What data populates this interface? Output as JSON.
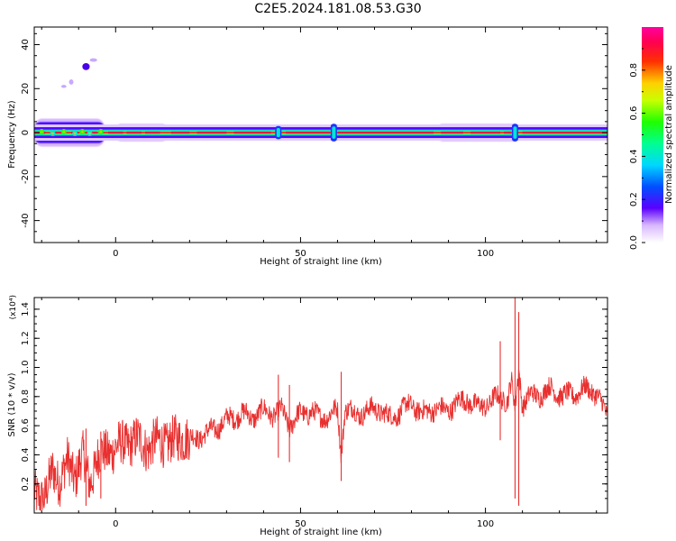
{
  "chart_data": [
    {
      "type": "heatmap",
      "title": "C2E5.2024.181.08.53.G30",
      "xlabel": "Height of straight line (km)",
      "ylabel": "Frequency (Hz)",
      "xlim": [
        -22,
        133
      ],
      "ylim": [
        -50,
        48
      ],
      "x_ticks": [
        0,
        50,
        100
      ],
      "y_ticks": [
        -40,
        -20,
        0,
        20,
        40
      ],
      "colorbar": {
        "label": "Normalized spectral amplitude",
        "range": [
          0,
          1
        ],
        "ticks": [
          "0.0",
          "0.2",
          "0.4",
          "0.6",
          "0.8"
        ],
        "tick_values": [
          0.0,
          0.2,
          0.4,
          0.6,
          0.8
        ]
      },
      "ridge": {
        "frequency": 0,
        "x_start": -22,
        "x_end": 133,
        "wide_segments": [
          {
            "x": [
              -22,
              -3
            ],
            "half_width": 4,
            "amplitude": 0.5
          },
          {
            "x": [
              0,
              14
            ],
            "half_width": 2.5,
            "amplitude": 0.45
          },
          {
            "x": [
              87,
              109
            ],
            "half_width": 2.5,
            "amplitude": 0.45
          }
        ],
        "spikes": [
          {
            "x": 44,
            "half_width": 3
          },
          {
            "x": 59,
            "half_width": 4
          },
          {
            "x": 108,
            "half_width": 4
          }
        ]
      },
      "blobs": [
        {
          "x": -8,
          "f": 30,
          "rx": 1,
          "ry": 1.6,
          "amplitude": 0.05
        },
        {
          "x": -6,
          "f": 33,
          "rx": 1,
          "ry": 0.8,
          "amplitude": 0.02
        },
        {
          "x": -12,
          "f": 23,
          "rx": 0.6,
          "ry": 1.2,
          "amplitude": 0.02
        },
        {
          "x": -14,
          "f": 21,
          "rx": 0.7,
          "ry": 0.7,
          "amplitude": 0.01
        }
      ]
    },
    {
      "type": "line",
      "xlabel": "Height of straight line (km)",
      "ylabel": "SNR (10 * v/v)",
      "y_exponent": "(x10⁴)",
      "xlim": [
        -22,
        133
      ],
      "ylim": [
        0,
        1.48
      ],
      "x_ticks": [
        0,
        50,
        100
      ],
      "y_ticks": [
        0.2,
        0.4,
        0.6,
        0.8,
        1.0,
        1.2,
        1.4
      ],
      "series": [
        {
          "color": "#e8302f",
          "x": [
            -22,
            -19,
            -17,
            -15,
            -13,
            -11,
            -9,
            -7,
            -5,
            -2,
            0,
            3,
            6,
            9,
            12,
            15,
            18,
            20,
            22,
            25,
            28,
            31,
            34,
            37,
            40,
            43,
            45,
            47,
            50,
            53,
            55,
            58,
            60,
            61,
            62,
            65,
            68,
            71,
            74,
            77,
            80,
            83,
            86,
            89,
            92,
            95,
            98,
            101,
            104,
            106,
            107,
            108,
            109,
            110,
            112,
            115,
            118,
            121,
            124,
            127,
            130,
            133
          ],
          "y": [
            0.15,
            0.1,
            0.3,
            0.22,
            0.35,
            0.25,
            0.4,
            0.2,
            0.38,
            0.42,
            0.45,
            0.48,
            0.5,
            0.45,
            0.5,
            0.48,
            0.53,
            0.5,
            0.52,
            0.55,
            0.6,
            0.65,
            0.68,
            0.66,
            0.7,
            0.68,
            0.7,
            0.6,
            0.68,
            0.7,
            0.65,
            0.68,
            0.7,
            0.4,
            0.72,
            0.68,
            0.7,
            0.72,
            0.65,
            0.7,
            0.75,
            0.68,
            0.72,
            0.7,
            0.75,
            0.78,
            0.72,
            0.76,
            0.8,
            0.78,
            0.9,
            0.7,
            1.0,
            0.75,
            0.8,
            0.82,
            0.85,
            0.8,
            0.82,
            0.85,
            0.83,
            0.65
          ]
        }
      ],
      "spikes": [
        {
          "x": -8,
          "min": 0.05,
          "max": 0.58
        },
        {
          "x": -4,
          "min": 0.1,
          "max": 0.56
        },
        {
          "x": 44,
          "min": 0.38,
          "max": 0.95
        },
        {
          "x": 47,
          "min": 0.35,
          "max": 0.88
        },
        {
          "x": 61,
          "min": 0.22,
          "max": 0.97
        },
        {
          "x": 104,
          "min": 0.5,
          "max": 1.18
        },
        {
          "x": 108,
          "min": 0.1,
          "max": 1.48
        },
        {
          "x": 109,
          "min": 0.05,
          "max": 1.38
        }
      ]
    }
  ]
}
